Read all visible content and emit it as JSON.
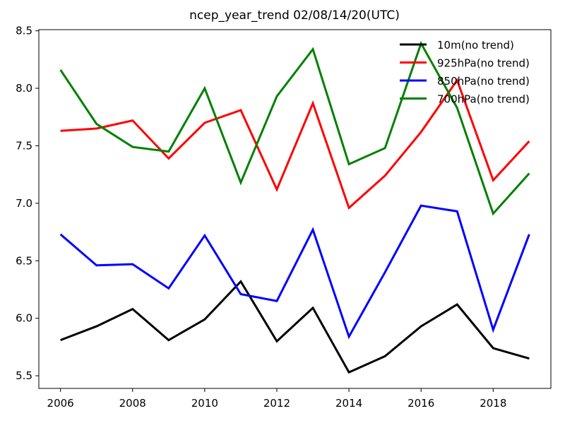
{
  "chart_data": {
    "type": "line",
    "title": "ncep_year_trend 02/08/14/20(UTC)",
    "xlabel": "",
    "ylabel": "",
    "x": [
      2006,
      2007,
      2008,
      2009,
      2010,
      2011,
      2012,
      2013,
      2014,
      2015,
      2016,
      2017,
      2018,
      2019
    ],
    "xlim": [
      2005.4,
      2019.6
    ],
    "ylim": [
      5.39,
      8.51
    ],
    "xticks": [
      2006,
      2008,
      2010,
      2012,
      2014,
      2016,
      2018
    ],
    "xtick_labels": [
      "2006",
      "2008",
      "2010",
      "2012",
      "2014",
      "2016",
      "2018"
    ],
    "yticks": [
      5.5,
      6.0,
      6.5,
      7.0,
      7.5,
      8.0,
      8.5
    ],
    "ytick_labels": [
      "5.5",
      "6.0",
      "6.5",
      "7.0",
      "7.5",
      "8.0",
      "8.5"
    ],
    "grid": false,
    "legend_position": "top-right",
    "series": [
      {
        "name": "10m(no trend)",
        "color": "#000000",
        "values": [
          5.81,
          5.93,
          6.08,
          5.81,
          5.99,
          6.32,
          5.8,
          6.09,
          5.53,
          5.67,
          5.93,
          6.12,
          5.74,
          5.65
        ]
      },
      {
        "name": "925hPa(no trend)",
        "color": "#ff0000",
        "values": [
          7.63,
          7.65,
          7.72,
          7.39,
          7.7,
          7.81,
          7.12,
          7.87,
          6.96,
          7.24,
          7.62,
          8.07,
          7.2,
          7.54
        ]
      },
      {
        "name": "850hPa(no trend)",
        "color": "#0000ff",
        "values": [
          6.73,
          6.46,
          6.47,
          6.26,
          6.72,
          6.21,
          6.15,
          6.77,
          5.84,
          6.4,
          6.98,
          6.93,
          5.9,
          6.73
        ]
      },
      {
        "name": "700hPa(no trend)",
        "color": "#008000",
        "values": [
          8.16,
          7.69,
          7.49,
          7.45,
          8.0,
          7.18,
          7.93,
          8.34,
          7.34,
          7.48,
          8.39,
          7.83,
          6.91,
          7.26
        ]
      }
    ]
  }
}
